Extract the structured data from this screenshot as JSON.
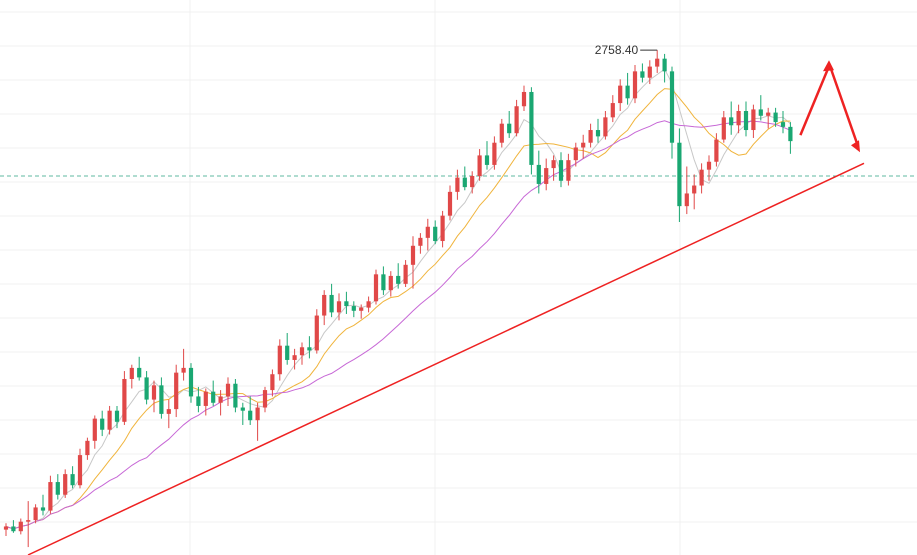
{
  "chart_data": {
    "type": "candlestick",
    "peak_annotation": {
      "label": "2758.40",
      "value": 2758.4
    },
    "reference_level": 2679,
    "y_range": [
      2440,
      2790
    ],
    "trendline": {
      "start_value": 2440,
      "end_value": 2687
    },
    "forecast_arrows": {
      "up_to": 2752,
      "down_to": 2694
    },
    "candles": [
      [
        2456,
        2460,
        2452,
        2458
      ],
      [
        2458,
        2462,
        2454,
        2455
      ],
      [
        2455,
        2463,
        2453,
        2461
      ],
      [
        2461,
        2474,
        2445,
        2462
      ],
      [
        2462,
        2472,
        2460,
        2470
      ],
      [
        2470,
        2478,
        2465,
        2468
      ],
      [
        2468,
        2490,
        2466,
        2486
      ],
      [
        2486,
        2491,
        2475,
        2478
      ],
      [
        2478,
        2494,
        2476,
        2491
      ],
      [
        2491,
        2496,
        2482,
        2484
      ],
      [
        2484,
        2507,
        2482,
        2503
      ],
      [
        2503,
        2514,
        2500,
        2512
      ],
      [
        2512,
        2528,
        2507,
        2526
      ],
      [
        2526,
        2531,
        2515,
        2519
      ],
      [
        2519,
        2534,
        2516,
        2531
      ],
      [
        2531,
        2534,
        2520,
        2524
      ],
      [
        2524,
        2556,
        2522,
        2551
      ],
      [
        2551,
        2560,
        2545,
        2558
      ],
      [
        2558,
        2565,
        2550,
        2552
      ],
      [
        2552,
        2556,
        2535,
        2538
      ],
      [
        2538,
        2550,
        2530,
        2547
      ],
      [
        2547,
        2552,
        2526,
        2529
      ],
      [
        2529,
        2538,
        2520,
        2532
      ],
      [
        2532,
        2560,
        2527,
        2555
      ],
      [
        2555,
        2570,
        2550,
        2558
      ],
      [
        2558,
        2561,
        2536,
        2540
      ],
      [
        2540,
        2546,
        2530,
        2534
      ],
      [
        2534,
        2545,
        2528,
        2543
      ],
      [
        2543,
        2550,
        2534,
        2536
      ],
      [
        2536,
        2544,
        2528,
        2540
      ],
      [
        2540,
        2552,
        2534,
        2548
      ],
      [
        2548,
        2551,
        2530,
        2533
      ],
      [
        2533,
        2536,
        2522,
        2531
      ],
      [
        2531,
        2540,
        2522,
        2525
      ],
      [
        2525,
        2536,
        2512,
        2533
      ],
      [
        2533,
        2546,
        2530,
        2544
      ],
      [
        2544,
        2557,
        2540,
        2554
      ],
      [
        2554,
        2576,
        2550,
        2572
      ],
      [
        2572,
        2580,
        2560,
        2563
      ],
      [
        2563,
        2570,
        2557,
        2566
      ],
      [
        2566,
        2574,
        2560,
        2571
      ],
      [
        2571,
        2578,
        2564,
        2569
      ],
      [
        2569,
        2595,
        2567,
        2591
      ],
      [
        2591,
        2607,
        2585,
        2604
      ],
      [
        2604,
        2611,
        2590,
        2593
      ],
      [
        2593,
        2605,
        2588,
        2600
      ],
      [
        2600,
        2606,
        2592,
        2597
      ],
      [
        2597,
        2600,
        2590,
        2594
      ],
      [
        2594,
        2598,
        2589,
        2596
      ],
      [
        2596,
        2603,
        2593,
        2600
      ],
      [
        2600,
        2620,
        2598,
        2617
      ],
      [
        2617,
        2622,
        2604,
        2607
      ],
      [
        2607,
        2619,
        2603,
        2616
      ],
      [
        2616,
        2624,
        2608,
        2611
      ],
      [
        2611,
        2626,
        2609,
        2623
      ],
      [
        2623,
        2641,
        2608,
        2635
      ],
      [
        2635,
        2643,
        2630,
        2640
      ],
      [
        2640,
        2652,
        2632,
        2647
      ],
      [
        2647,
        2651,
        2636,
        2638
      ],
      [
        2638,
        2657,
        2634,
        2654
      ],
      [
        2654,
        2673,
        2651,
        2669
      ],
      [
        2669,
        2683,
        2664,
        2678
      ],
      [
        2678,
        2685,
        2670,
        2672
      ],
      [
        2672,
        2682,
        2668,
        2679
      ],
      [
        2679,
        2696,
        2676,
        2692
      ],
      [
        2692,
        2701,
        2683,
        2686
      ],
      [
        2686,
        2704,
        2683,
        2700
      ],
      [
        2700,
        2715,
        2697,
        2712
      ],
      [
        2712,
        2720,
        2703,
        2706
      ],
      [
        2706,
        2727,
        2704,
        2723
      ],
      [
        2723,
        2736,
        2720,
        2732
      ],
      [
        2732,
        2735,
        2680,
        2686
      ],
      [
        2686,
        2695,
        2668,
        2674
      ],
      [
        2674,
        2690,
        2670,
        2684
      ],
      [
        2684,
        2692,
        2676,
        2689
      ],
      [
        2689,
        2694,
        2672,
        2676
      ],
      [
        2676,
        2693,
        2673,
        2689
      ],
      [
        2689,
        2700,
        2685,
        2697
      ],
      [
        2697,
        2705,
        2690,
        2700
      ],
      [
        2700,
        2712,
        2697,
        2708
      ],
      [
        2708,
        2715,
        2700,
        2704
      ],
      [
        2704,
        2720,
        2702,
        2716
      ],
      [
        2716,
        2730,
        2713,
        2725
      ],
      [
        2725,
        2740,
        2720,
        2736
      ],
      [
        2736,
        2744,
        2724,
        2728
      ],
      [
        2728,
        2749,
        2725,
        2745
      ],
      [
        2745,
        2750,
        2738,
        2741
      ],
      [
        2741,
        2752,
        2737,
        2748
      ],
      [
        2748,
        2758.4,
        2744,
        2753
      ],
      [
        2753,
        2756,
        2738,
        2745
      ],
      [
        2745,
        2748,
        2690,
        2700
      ],
      [
        2700,
        2709,
        2650,
        2660
      ],
      [
        2660,
        2685,
        2655,
        2668
      ],
      [
        2668,
        2680,
        2658,
        2673
      ],
      [
        2673,
        2687,
        2668,
        2683
      ],
      [
        2683,
        2692,
        2676,
        2688
      ],
      [
        2688,
        2706,
        2685,
        2702
      ],
      [
        2702,
        2720,
        2700,
        2716
      ],
      [
        2716,
        2726,
        2705,
        2711
      ],
      [
        2711,
        2724,
        2706,
        2720
      ],
      [
        2720,
        2726,
        2704,
        2708
      ],
      [
        2708,
        2724,
        2703,
        2721
      ],
      [
        2721,
        2730,
        2714,
        2717
      ],
      [
        2717,
        2722,
        2709,
        2719
      ],
      [
        2719,
        2722,
        2710,
        2713
      ],
      [
        2713,
        2720,
        2706,
        2710
      ],
      [
        2710,
        2713,
        2693,
        2701
      ]
    ]
  }
}
